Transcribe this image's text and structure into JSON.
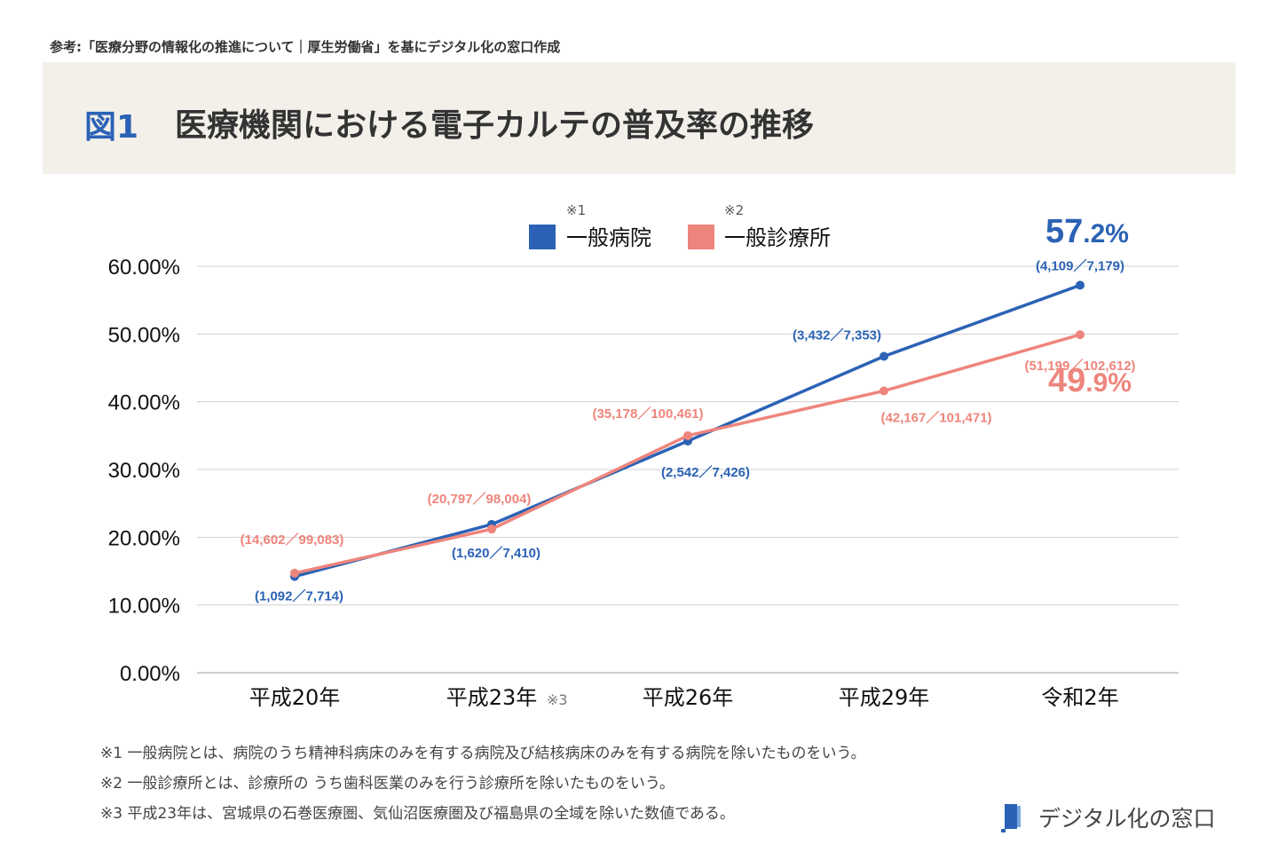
{
  "source_note": "参考:「医療分野の情報化の推進について｜厚生労働省」を基にデジタル化の窓口作成",
  "figure_number": "図1",
  "figure_title": "医療機関における電子カルテの普及率の推移",
  "colors": {
    "hospital": "#2b62b5",
    "clinic": "#ee857c",
    "grid": "#d0d0d0",
    "band": "#f3f0ea"
  },
  "chart_data": {
    "type": "line",
    "categories": [
      "平成20年",
      "平成23年",
      "平成26年",
      "平成29年",
      "令和2年"
    ],
    "category_marks": [
      "",
      "※3",
      "",
      "",
      ""
    ],
    "y_ticks": [
      "0.00%",
      "10.00%",
      "20.00%",
      "30.00%",
      "40.00%",
      "50.00%",
      "60.00%"
    ],
    "ylim": [
      0,
      60
    ],
    "grid": true,
    "legend_position": "top-center",
    "series": [
      {
        "name": "一般病院",
        "mark": "※1",
        "color": "#2b62b5",
        "values": [
          14.2,
          21.9,
          34.2,
          46.7,
          57.2
        ],
        "labels": [
          "(1,092／7,714)",
          "(1,620／7,410)",
          "(2,542／7,426)",
          "(3,432／7,353)",
          "(4,109／7,179)"
        ],
        "highlight": {
          "main": "57",
          "decimal": ".2%"
        }
      },
      {
        "name": "一般診療所",
        "mark": "※2",
        "color": "#ee857c",
        "values": [
          14.7,
          21.2,
          35.0,
          41.6,
          49.9
        ],
        "labels": [
          "(14,602／99,083)",
          "(20,797／98,004)",
          "(35,178／100,461)",
          "(42,167／101,471)",
          "(51,199／102,612)"
        ],
        "highlight": {
          "main": "49",
          "decimal": ".9%"
        }
      }
    ]
  },
  "notes": [
    "※1 一般病院とは、病院のうち精神科病床のみを有する病院及び結核病床のみを有する病院を除いたものをいう。",
    "※2 一般診療所とは、診療所の うち歯科医業のみを行う診療所を除いたものをいう。",
    "※3 平成23年は、宮城県の石巻医療圏、気仙沼医療圏及び福島県の全域を除いた数値である。"
  ],
  "logo_text": "デジタル化の窓口"
}
